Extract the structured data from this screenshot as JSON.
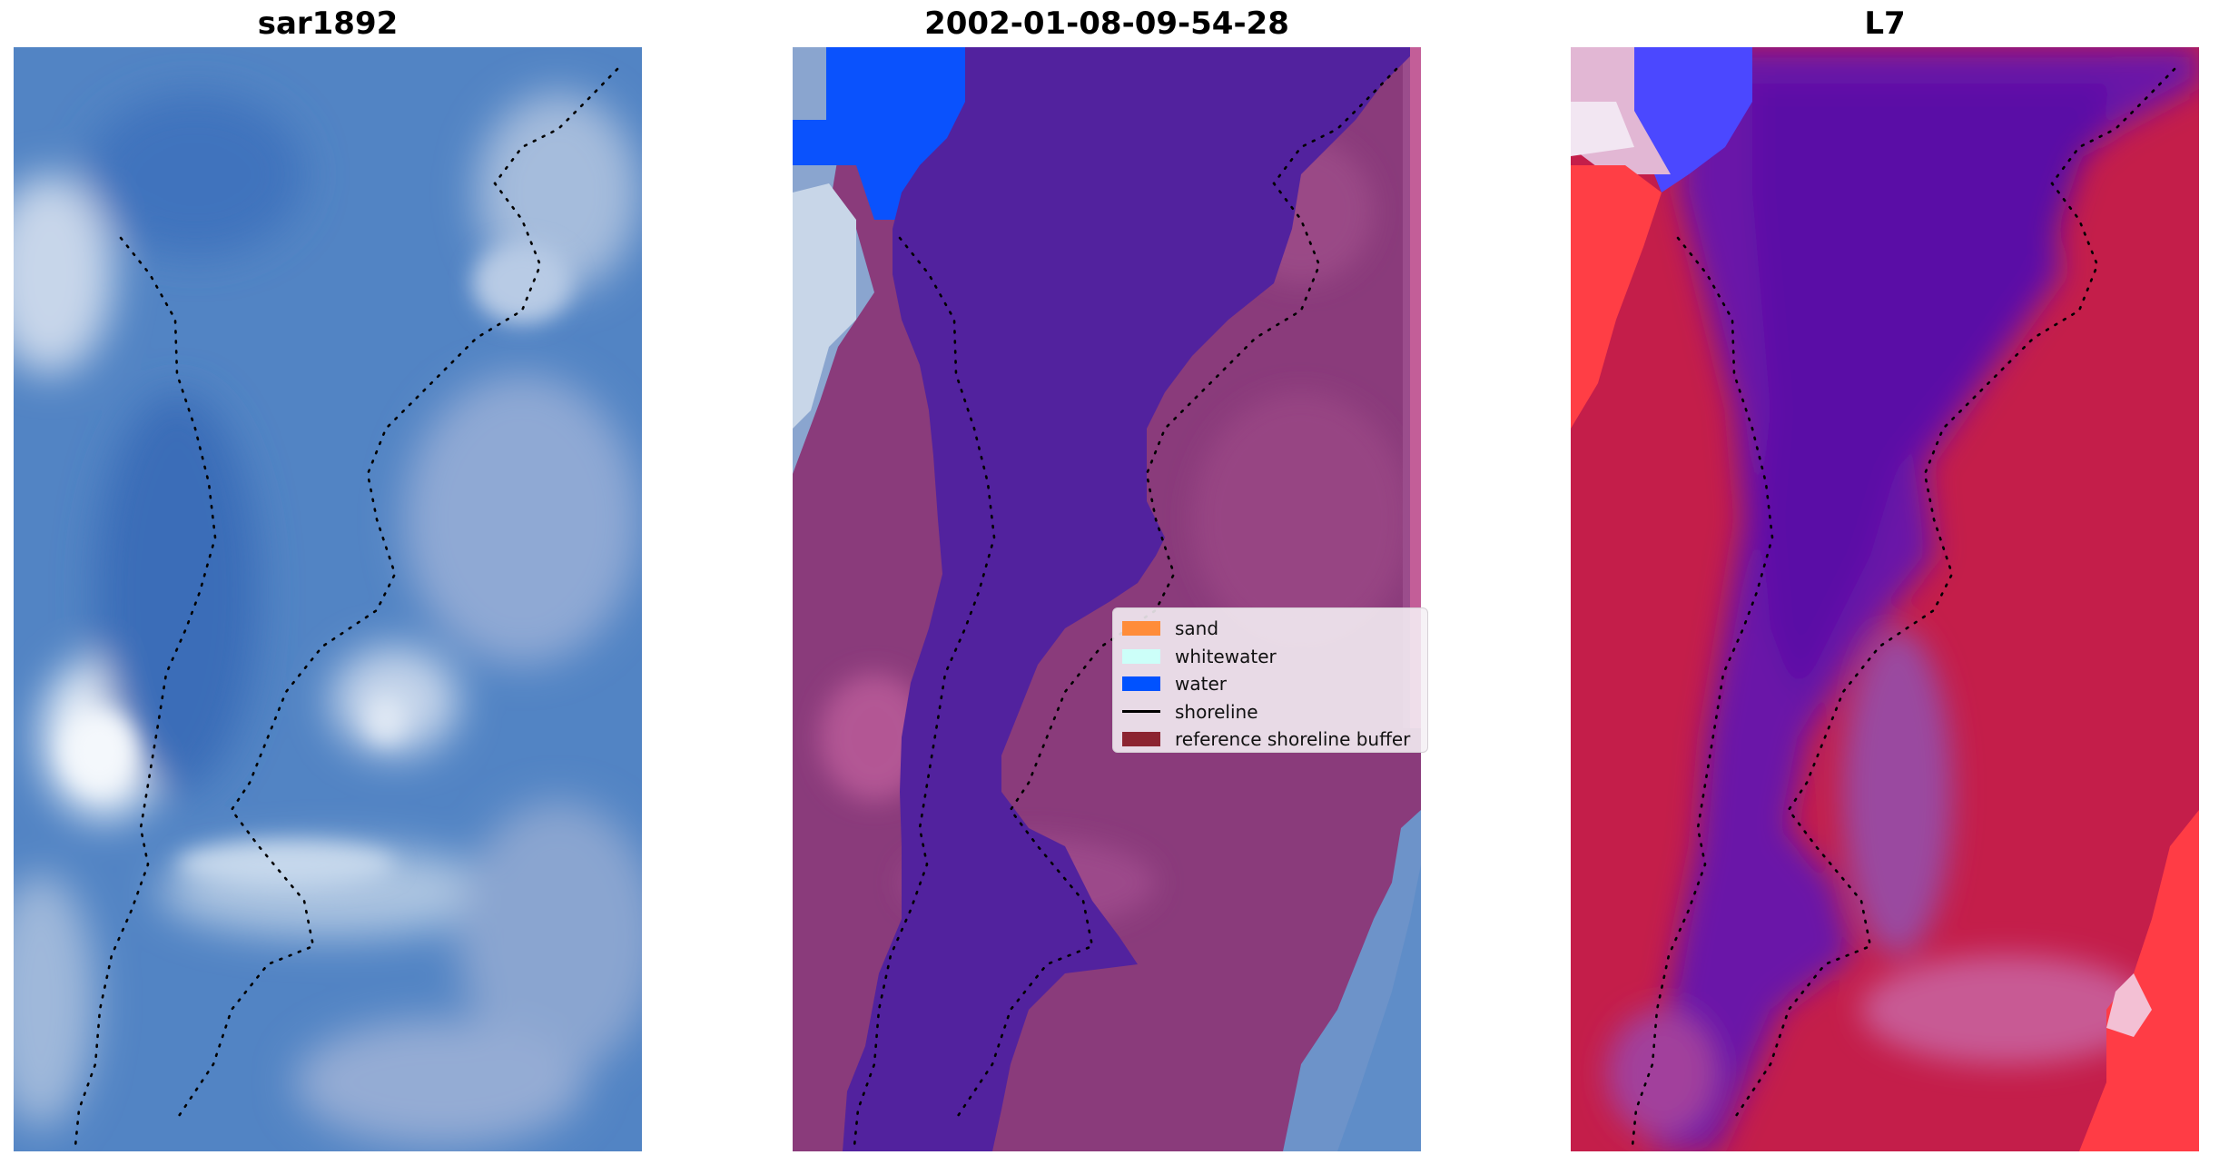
{
  "panels": [
    {
      "id": "rgb",
      "title": "sar1892"
    },
    {
      "id": "classified",
      "title": "2002-01-08-09-54-28"
    },
    {
      "id": "index",
      "title": "L7"
    }
  ],
  "legend": {
    "items": [
      {
        "label": "sand",
        "kind": "patch",
        "color": "#ff8c3a"
      },
      {
        "label": "whitewater",
        "kind": "patch",
        "color": "#ccfff9"
      },
      {
        "label": "water",
        "kind": "patch",
        "color": "#0052ff"
      },
      {
        "label": "shoreline",
        "kind": "line",
        "color": "#000000"
      },
      {
        "label": "reference shoreline buffer",
        "kind": "patch",
        "color": "#8c2431"
      }
    ]
  },
  "colors": {
    "rgb_base": "#4a7ec2",
    "rgb_light": "#bcd0e6",
    "class_water_overlay": "#5224a0",
    "class_land": "#8e3e7e",
    "class_water_blue": "#0052ff",
    "index_land": "#c61e4a",
    "index_water": "#6a1aa6",
    "index_blue": "#4444ff"
  },
  "icons": {
    "shoreline": "dotted-line-icon"
  }
}
